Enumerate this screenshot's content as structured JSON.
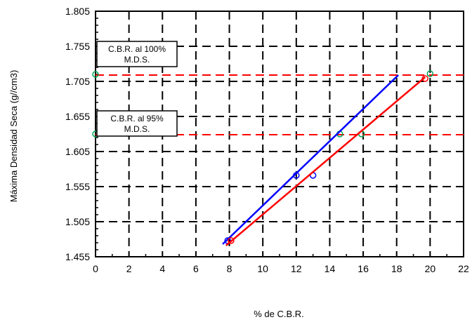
{
  "chart_data": {
    "type": "line",
    "xlabel": "% de C.B.R.",
    "ylabel": "Máxima Densidad Seca (g//cm3)",
    "xlim": [
      0,
      22
    ],
    "ylim": [
      1.455,
      1.805
    ],
    "x_ticks": [
      0,
      2,
      4,
      6,
      8,
      10,
      12,
      14,
      16,
      18,
      20,
      22
    ],
    "y_ticks": [
      1.455,
      1.505,
      1.555,
      1.605,
      1.655,
      1.705,
      1.755,
      1.805
    ],
    "y_tick_labels": [
      "1.455",
      "1.505",
      "1.555",
      "1.605",
      "1.655",
      "1.705",
      "1.755",
      "1.805"
    ],
    "grid": true,
    "colors": {
      "blue_line": "#0000ff",
      "red_line": "#ff0000",
      "ref_line": "#ff0000",
      "ref_marker": "#00a651",
      "grid": "#000000"
    },
    "series": [
      {
        "color": "#0000ff",
        "line": [
          [
            7.6,
            1.473
          ],
          [
            18.1,
            1.714
          ]
        ],
        "points": [
          [
            7.9,
            1.478
          ],
          [
            12.0,
            1.571
          ],
          [
            13.0,
            1.571
          ]
        ]
      },
      {
        "color": "#ff0000",
        "line": [
          [
            7.8,
            1.471
          ],
          [
            19.7,
            1.711
          ]
        ],
        "points": [
          [
            8.1,
            1.478
          ],
          [
            19.7,
            1.709
          ]
        ]
      }
    ],
    "reference_lines": [
      {
        "y": 1.714,
        "x_range": [
          0,
          22
        ],
        "markers": [
          [
            0,
            1.715
          ],
          [
            20.0,
            1.716
          ]
        ],
        "label_lines": [
          "C.B.R. al 100%",
          "M.D.S."
        ]
      },
      {
        "y": 1.629,
        "x_range": [
          0,
          22
        ],
        "markers": [
          [
            0,
            1.63
          ],
          [
            14.6,
            1.63
          ],
          [
            15.9,
            1.63
          ]
        ],
        "label_lines": [
          "C.B.R. al 95%",
          "M.D.S."
        ]
      }
    ]
  }
}
